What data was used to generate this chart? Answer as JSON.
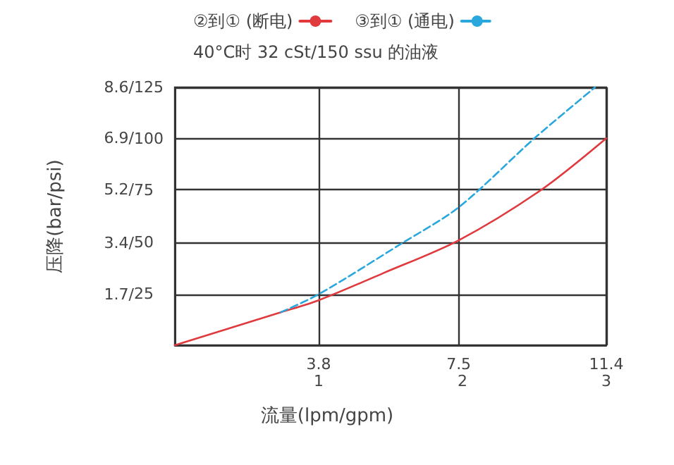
{
  "chart_data": {
    "type": "line",
    "title": "40°C时 32 cSt/150 ssu 的油液",
    "xlabel": "流量(lpm/gpm)",
    "ylabel": "压降(bar/psi)",
    "xlim": [
      0,
      11.4
    ],
    "xticks": [
      3.8,
      7.5,
      11.4
    ],
    "x2lim": [
      0,
      3
    ],
    "x2ticks": [
      1,
      2,
      3
    ],
    "ylim": [
      0,
      8.6
    ],
    "yticks": [
      {
        "value": 1.7,
        "label": "1.7/"
      },
      {
        "value": 3.4,
        "label": "3.4/"
      },
      {
        "value": 5.2,
        "label": "5.2/"
      },
      {
        "value": 6.9,
        "label": "6.9/"
      },
      {
        "value": 8.6,
        "label": "8.6/"
      }
    ],
    "y2lim": [
      0,
      125
    ],
    "y2ticks": [
      25,
      50,
      75,
      100,
      125
    ],
    "grid": true,
    "legend": "top",
    "marker": "none",
    "series": [
      {
        "name": "②到① (断电)",
        "color": "#e0393e",
        "line_style": "solid",
        "x": [
          0,
          2.8,
          3.8,
          5.5,
          7.5,
          9.7,
          11.4
        ],
        "values": [
          0,
          1.1,
          1.5,
          2.4,
          3.5,
          5.2,
          6.9
        ]
      },
      {
        "name": "③到① (通电)",
        "color": "#2aa7dc",
        "line_style": "dashed",
        "x": [
          2.8,
          3.8,
          6,
          7.5,
          9.5,
          11.1
        ],
        "values": [
          1.1,
          1.7,
          3.4,
          4.6,
          6.9,
          8.6
        ]
      }
    ]
  }
}
